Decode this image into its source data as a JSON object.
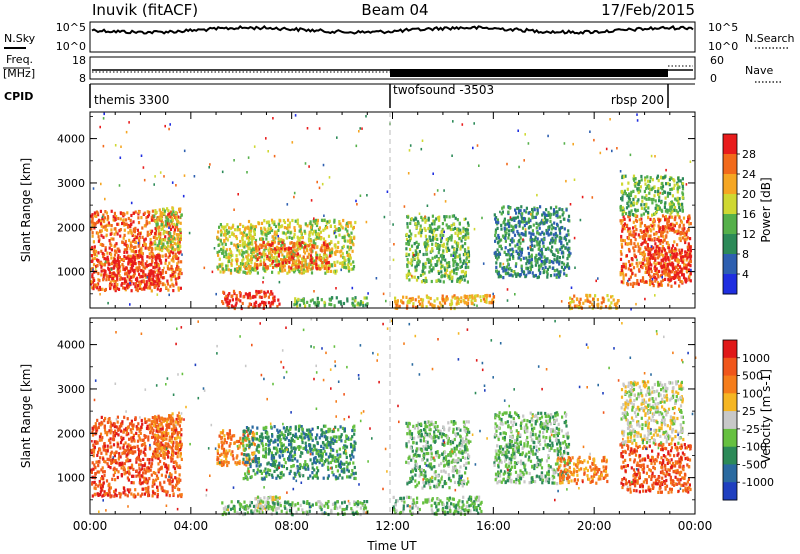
{
  "header": {
    "station": "Inuvik (fitACF)",
    "beam": "Beam 04",
    "date": "17/Feb/2015"
  },
  "nsky_panel": {
    "left_label": "N.Sky",
    "right_label": "N.Search",
    "left_ticks": [
      "10^5",
      "10^0"
    ],
    "right_ticks": [
      "10^5",
      "10^0"
    ]
  },
  "freq_panel": {
    "left_label": "Freq.",
    "left_unit": "[MHz]",
    "left_ticks": [
      "18",
      "8"
    ],
    "right_label": "Nave",
    "right_ticks": [
      "60",
      "0"
    ]
  },
  "cpid_panel": {
    "label": "CPID",
    "segments": [
      {
        "name": "themis 3300",
        "start": 0,
        "end": 12
      },
      {
        "name": "twofsound -3503",
        "start": 12,
        "end": 21.5
      },
      {
        "name": "rbsp 200",
        "start": 21.5,
        "end": 23.2
      }
    ]
  },
  "chart_data": [
    {
      "type": "heatmap",
      "variable": "Power",
      "ylabel": "Slant Range [km]",
      "ylim": [
        180,
        4600
      ],
      "xlim": [
        0,
        24
      ],
      "yticks": [
        "1000",
        "2000",
        "3000",
        "4000"
      ],
      "colorbar": {
        "label": "Power [dB]",
        "ticks": [
          "4",
          "8",
          "12",
          "16",
          "20",
          "24",
          "28"
        ],
        "colors": [
          "#1f2ee0",
          "#2d5fb0",
          "#2c8a58",
          "#55b04a",
          "#cfd832",
          "#f5a623",
          "#f26a1b",
          "#e81c1c"
        ]
      },
      "regions": [
        {
          "t": [
            0,
            3.6
          ],
          "r": [
            600,
            2400
          ],
          "level": 6
        },
        {
          "t": [
            0.5,
            2.8
          ],
          "r": [
            700,
            1400
          ],
          "level": 7
        },
        {
          "t": [
            2.5,
            3.6
          ],
          "r": [
            1500,
            2500
          ],
          "level": 4
        },
        {
          "t": [
            5,
            6.5
          ],
          "r": [
            1000,
            2100
          ],
          "level": 4
        },
        {
          "t": [
            6,
            10.5
          ],
          "r": [
            1000,
            2200
          ],
          "level": 4
        },
        {
          "t": [
            6.5,
            9.5
          ],
          "r": [
            1100,
            1700
          ],
          "level": 6
        },
        {
          "t": [
            5.2,
            7.5
          ],
          "r": [
            200,
            600
          ],
          "level": 7
        },
        {
          "t": [
            8,
            11
          ],
          "r": [
            250,
            450
          ],
          "level": 3
        },
        {
          "t": [
            12,
            14.5
          ],
          "r": [
            200,
            500
          ],
          "level": 5
        },
        {
          "t": [
            12.5,
            15
          ],
          "r": [
            800,
            2300
          ],
          "level": 3
        },
        {
          "t": [
            14.5,
            16
          ],
          "r": [
            300,
            500
          ],
          "level": 5
        },
        {
          "t": [
            16,
            19
          ],
          "r": [
            900,
            2500
          ],
          "level": 2
        },
        {
          "t": [
            19,
            21
          ],
          "r": [
            200,
            500
          ],
          "level": 5
        },
        {
          "t": [
            21,
            23.8
          ],
          "r": [
            700,
            2300
          ],
          "level": 6
        },
        {
          "t": [
            22,
            23.8
          ],
          "r": [
            800,
            1600
          ],
          "level": 7
        },
        {
          "t": [
            21,
            23.5
          ],
          "r": [
            2300,
            3200
          ],
          "level": 3
        }
      ]
    },
    {
      "type": "heatmap",
      "variable": "Velocity",
      "ylabel": "Slant Range [km]",
      "xlabel": "Time UT",
      "ylim": [
        180,
        4600
      ],
      "xlim": [
        0,
        24
      ],
      "yticks": [
        "1000",
        "2000",
        "3000",
        "4000"
      ],
      "xticks": [
        "00:00",
        "04:00",
        "08:00",
        "12:00",
        "16:00",
        "20:00",
        "00:00"
      ],
      "colorbar": {
        "label": "Velocity [m s-1]",
        "ticks": [
          "1000",
          "500",
          "100",
          "25",
          "-25",
          "-100",
          "-500",
          "-1000"
        ],
        "colors": [
          "#1f3fbf",
          "#2a6aa0",
          "#2c8a58",
          "#66c040",
          "#c8c8c8",
          "#f5b623",
          "#f57d1b",
          "#f0561b",
          "#e01818"
        ]
      },
      "regions": [
        {
          "t": [
            0,
            3.6
          ],
          "r": [
            600,
            2400
          ],
          "level": 7
        },
        {
          "t": [
            2.5,
            3.6
          ],
          "r": [
            1500,
            2500
          ],
          "level": 6
        },
        {
          "t": [
            5,
            6.5
          ],
          "r": [
            1300,
            2100
          ],
          "level": 6
        },
        {
          "t": [
            6,
            10.5
          ],
          "r": [
            1000,
            2200
          ],
          "level": 2
        },
        {
          "t": [
            6.5,
            7.5
          ],
          "r": [
            300,
            600
          ],
          "level": 4
        },
        {
          "t": [
            5.2,
            11
          ],
          "r": [
            200,
            500
          ],
          "level": 3
        },
        {
          "t": [
            12,
            15.5
          ],
          "r": [
            200,
            600
          ],
          "level": 3
        },
        {
          "t": [
            12.5,
            15
          ],
          "r": [
            800,
            2300
          ],
          "level": 3
        },
        {
          "t": [
            16,
            19
          ],
          "r": [
            900,
            2500
          ],
          "level": 3
        },
        {
          "t": [
            18.5,
            20.5
          ],
          "r": [
            900,
            1500
          ],
          "level": 6
        },
        {
          "t": [
            21,
            23.8
          ],
          "r": [
            700,
            1800
          ],
          "level": 7
        },
        {
          "t": [
            21,
            23.5
          ],
          "r": [
            1800,
            3200
          ],
          "level": 4
        }
      ]
    }
  ]
}
